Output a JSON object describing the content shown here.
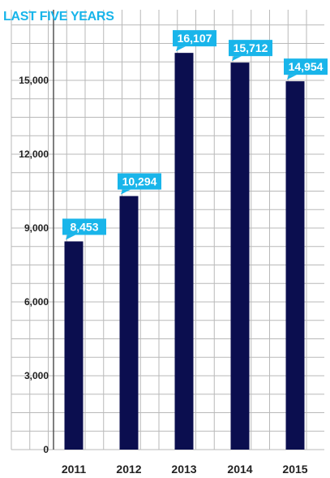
{
  "colors": {
    "bar": "#0b0e4f",
    "accent": "#19b5ea",
    "grid": "#b9b9b9",
    "text": "#222222",
    "label_text": "#ffffff"
  },
  "chart_data": {
    "type": "bar",
    "title": "LAST FIVE YEARS",
    "xlabel": "",
    "ylabel": "",
    "categories": [
      "2011",
      "2012",
      "2013",
      "2014",
      "2015"
    ],
    "values": [
      8453,
      10294,
      16107,
      15712,
      14954
    ],
    "value_labels": [
      "8,453",
      "10,294",
      "16,107",
      "15,712",
      "14,954"
    ],
    "ylim": [
      0,
      18000
    ],
    "yticks": [
      0,
      3000,
      6000,
      9000,
      12000,
      15000
    ],
    "ytick_labels": [
      "0",
      "3,000",
      "6,000",
      "9,000",
      "12,000",
      "15,000"
    ],
    "grid": true,
    "legend": "none"
  }
}
